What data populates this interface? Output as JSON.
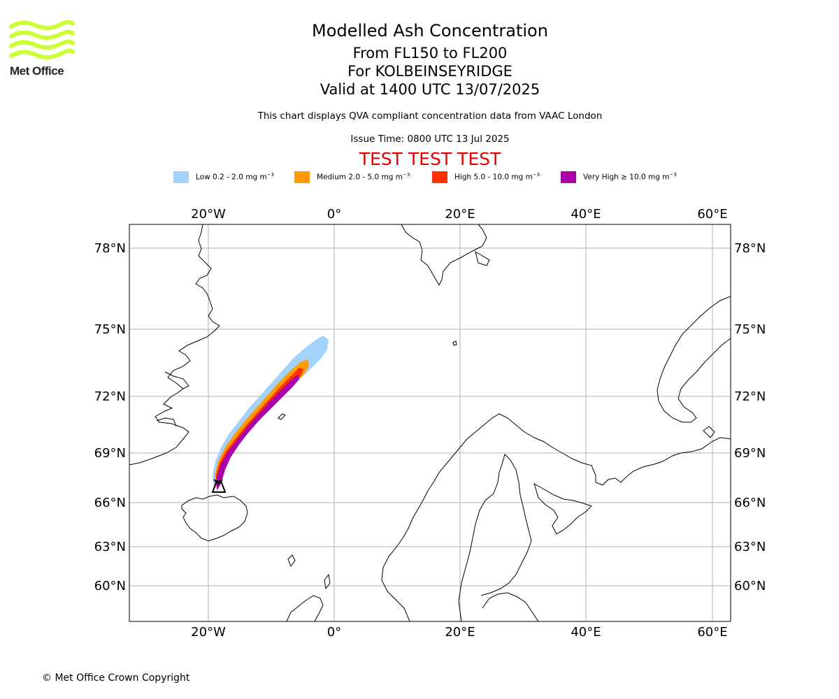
{
  "brand": {
    "name": "Met Office",
    "logo_color": "#ccff33"
  },
  "header": {
    "title": "Modelled Ash Concentration",
    "flight_levels": "From FL150 to FL200",
    "volcano": "For KOLBEINSEYRIDGE",
    "valid_time": "Valid at 1400 UTC 13/07/2025",
    "note": "This chart displays QVA compliant concentration data from VAAC London",
    "issue_time": "Issue Time: 0800 UTC 13 Jul 2025",
    "test_banner": "TEST TEST TEST"
  },
  "legend": [
    {
      "label": "Low 0.2 - 2.0 mg m",
      "unit_sup": "−3",
      "color": "#a3d3fb"
    },
    {
      "label": "Medium 2.0 - 5.0 mg m",
      "unit_sup": "−3",
      "color": "#ff9a03"
    },
    {
      "label": "High 5.0 - 10.0 mg m",
      "unit_sup": "−3",
      "color": "#ff3103"
    },
    {
      "label": "Very High ≥ 10.0 mg m",
      "unit_sup": "−3",
      "color": "#aa00aa"
    }
  ],
  "map": {
    "lon_ticks": [
      "20°W",
      "0°",
      "20°E",
      "40°E",
      "60°E"
    ],
    "lat_ticks": [
      "78°N",
      "75°N",
      "72°N",
      "69°N",
      "66°N",
      "63°N",
      "60°N"
    ],
    "grid_color": "#b0b0b0",
    "coast_color": "#000000",
    "volcano_marker": "volcano-icon"
  },
  "footer": {
    "copyright": "© Met Office Crown Copyright"
  }
}
